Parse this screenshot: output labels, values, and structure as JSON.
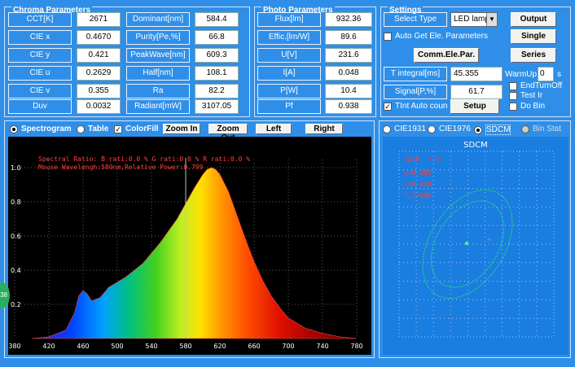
{
  "chroma": {
    "title": "Chroma  Parameters",
    "rows": [
      {
        "label": "CCT[K]",
        "value": "2671",
        "label2": "Dominant[nm]",
        "value2": "584.4"
      },
      {
        "label": "CIE x",
        "value": "0.4670",
        "label2": "Purity[Pe,%]",
        "value2": "66.8"
      },
      {
        "label": "CIE y",
        "value": "0.421",
        "label2": "PeakWave[nm]",
        "value2": "609.3"
      },
      {
        "label": "CIE u",
        "value": "0.2629",
        "label2": "Half[nm]",
        "value2": "108.1"
      },
      {
        "label": "CIE v",
        "value": "0.355",
        "label2": "Ra",
        "value2": "82.2"
      },
      {
        "label": "Duv",
        "value": "0.0032",
        "label2": "Radiant[mW]",
        "value2": "3107.05"
      }
    ]
  },
  "photo": {
    "title": "Photo Parameters",
    "rows": [
      {
        "label": "Flux[lm]",
        "value": "932.36"
      },
      {
        "label": "Effic.[lm/W]",
        "value": "89.6"
      },
      {
        "label": "U[V]",
        "value": "231.6"
      },
      {
        "label": "I[A]",
        "value": "0.048"
      },
      {
        "label": "P[W]",
        "value": "10.4"
      },
      {
        "label": "Pf",
        "value": "0.938"
      }
    ]
  },
  "settings": {
    "title": "Settings",
    "select_type_label": "Select Type",
    "select_type_value": "LED lamp",
    "output_label": "Output",
    "single_label": "Single",
    "series_label": "Series",
    "auto_get_label": "Auto Get Ele. Parameters",
    "comm_label": "Comm.Ele.Par.",
    "t_integral_label": "T integral[ms]",
    "t_integral_value": "45.355",
    "warmup_label": "WarmUp",
    "warmup_value": "0",
    "warmup_unit": "s",
    "signal_label": "Signal[P,%]",
    "signal_value": "61.7",
    "tint_label": "TInt Auto coun",
    "setup_label": "Setup",
    "end_turn_off": "EndTurnOff",
    "test_ir": "Test Ir",
    "do_bin": "Do Bin"
  },
  "spectro_toolbar": {
    "spectrogram": "Spectrogram",
    "table": "Table",
    "colorfill": "ColorFill",
    "zoom_in": "Zoom In",
    "zoom_out": "Zoom Out",
    "left": "Left",
    "right": "Right"
  },
  "cie_toolbar": {
    "cie1931": "CIE1931",
    "cie1976": "CIE1976",
    "sdcm": "SDCM",
    "bin_stat": "Bin Stat"
  },
  "spectrum_plot": {
    "line1": "Spectral Ratio:  B rati:0.0 %       G rati:0.0 %       R rati:0.0 %",
    "line2": "Mouse Wavelengh:580nm,Relative Power:0.799",
    "x_ticks": [
      "380",
      "420",
      "460",
      "500",
      "540",
      "580",
      "620",
      "660",
      "700",
      "740",
      "780"
    ],
    "y_ticks": [
      "1.0",
      "0.8",
      "0.6",
      "0.4",
      "0.2"
    ],
    "cursor_wavelength": 580
  },
  "sdcm_plot": {
    "title": "SDCM",
    "lines": [
      "SDCM: 2.9",
      "x=0.463",
      "y=0.420",
      "T:2700K"
    ]
  },
  "side_bubble": "38",
  "chart_data": {
    "type": "line",
    "title": "",
    "xlabel": "",
    "ylabel": "",
    "xlim": [
      380,
      780
    ],
    "ylim": [
      0,
      1.0
    ],
    "series": [
      {
        "x": [
          400,
          420,
          440,
          450,
          455,
          460,
          465,
          470,
          480,
          490,
          500,
          510,
          520,
          530,
          540,
          550,
          560,
          570,
          580,
          590,
          600,
          605,
          610,
          615,
          620,
          630,
          640,
          650,
          660,
          670,
          680,
          690,
          700,
          720,
          740,
          760,
          780
        ],
        "values": [
          0.0,
          0.01,
          0.05,
          0.15,
          0.25,
          0.28,
          0.26,
          0.22,
          0.24,
          0.3,
          0.33,
          0.36,
          0.4,
          0.44,
          0.5,
          0.56,
          0.63,
          0.7,
          0.79,
          0.88,
          0.96,
          0.99,
          1.0,
          0.99,
          0.96,
          0.86,
          0.72,
          0.58,
          0.45,
          0.34,
          0.25,
          0.18,
          0.12,
          0.06,
          0.03,
          0.01,
          0.0
        ]
      }
    ]
  }
}
